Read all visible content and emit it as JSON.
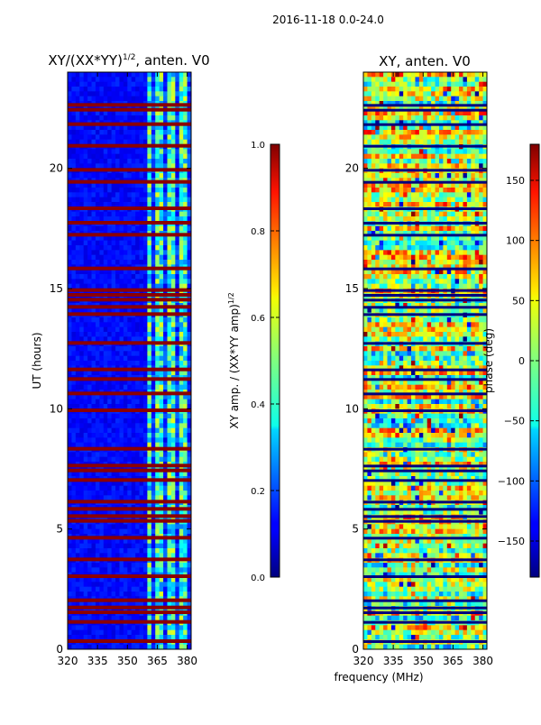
{
  "figure_title": "2016-11-18 0.0-24.0",
  "colors": {
    "jet_low": "#00007f",
    "jet_mid": "#7fff7f",
    "jet_high": "#7f0000",
    "flag_line": "#8b0000"
  },
  "chart_data": [
    {
      "type": "heatmap",
      "title": "XY/(XX*YY)",
      "title_sup": "1/2",
      "title_suffix": ", anten. V0",
      "xlabel": "",
      "ylabel": "UT (hours)",
      "xlim": [
        320,
        382
      ],
      "ylim": [
        0,
        24
      ],
      "x_ticks": [
        "320",
        "335",
        "350",
        "365",
        "380"
      ],
      "x_tick_values": [
        320,
        335,
        350,
        365,
        380
      ],
      "y_ticks": [
        "0",
        "5",
        "10",
        "15",
        "20"
      ],
      "y_tick_values": [
        0,
        5,
        10,
        15,
        20
      ],
      "bright_band_start_mhz": 359,
      "flagged_hours": [
        0.3,
        1.1,
        1.5,
        1.7,
        2.0,
        3.0,
        3.7,
        4.6,
        5.3,
        5.5,
        5.8,
        6.1,
        7.0,
        7.4,
        7.6,
        8.3,
        9.9,
        10.6,
        11.2,
        11.6,
        12.7,
        13.9,
        14.2,
        14.5,
        14.7,
        14.9,
        15.8,
        17.2,
        17.7,
        18.3,
        19.4,
        19.9,
        20.9,
        21.8,
        22.4,
        22.6
      ],
      "colorbar": {
        "label": "XY amp. / (XX*YY amp)",
        "label_sup": "1/2",
        "range": [
          0.0,
          1.0
        ],
        "ticks": [
          "0.0",
          "0.2",
          "0.4",
          "0.6",
          "0.8",
          "1.0"
        ],
        "tick_values": [
          0.0,
          0.2,
          0.4,
          0.6,
          0.8,
          1.0
        ]
      }
    },
    {
      "type": "heatmap",
      "title": "XY, anten. V0",
      "xlabel": "frequency (MHz)",
      "ylabel": "",
      "xlim": [
        320,
        382
      ],
      "ylim": [
        0,
        24
      ],
      "x_ticks": [
        "320",
        "335",
        "350",
        "365",
        "380"
      ],
      "x_tick_values": [
        320,
        335,
        350,
        365,
        380
      ],
      "y_ticks": [
        "0",
        "5",
        "10",
        "15",
        "20"
      ],
      "y_tick_values": [
        0,
        5,
        10,
        15,
        20
      ],
      "flagged_hours": [
        0.3,
        1.1,
        1.5,
        1.7,
        2.0,
        3.0,
        3.7,
        4.6,
        5.3,
        5.5,
        5.8,
        6.1,
        7.0,
        7.4,
        7.6,
        8.3,
        9.9,
        10.6,
        11.2,
        11.6,
        12.7,
        13.9,
        14.2,
        14.5,
        14.7,
        14.9,
        15.8,
        17.2,
        17.7,
        18.3,
        19.4,
        19.9,
        20.9,
        21.8,
        22.4,
        22.6
      ],
      "colorbar": {
        "label": "phase (deg)",
        "range": [
          -180,
          180
        ],
        "ticks": [
          "−150",
          "−100",
          "−50",
          "0",
          "50",
          "100",
          "150"
        ],
        "tick_values": [
          -150,
          -100,
          -50,
          0,
          50,
          100,
          150
        ]
      }
    }
  ]
}
